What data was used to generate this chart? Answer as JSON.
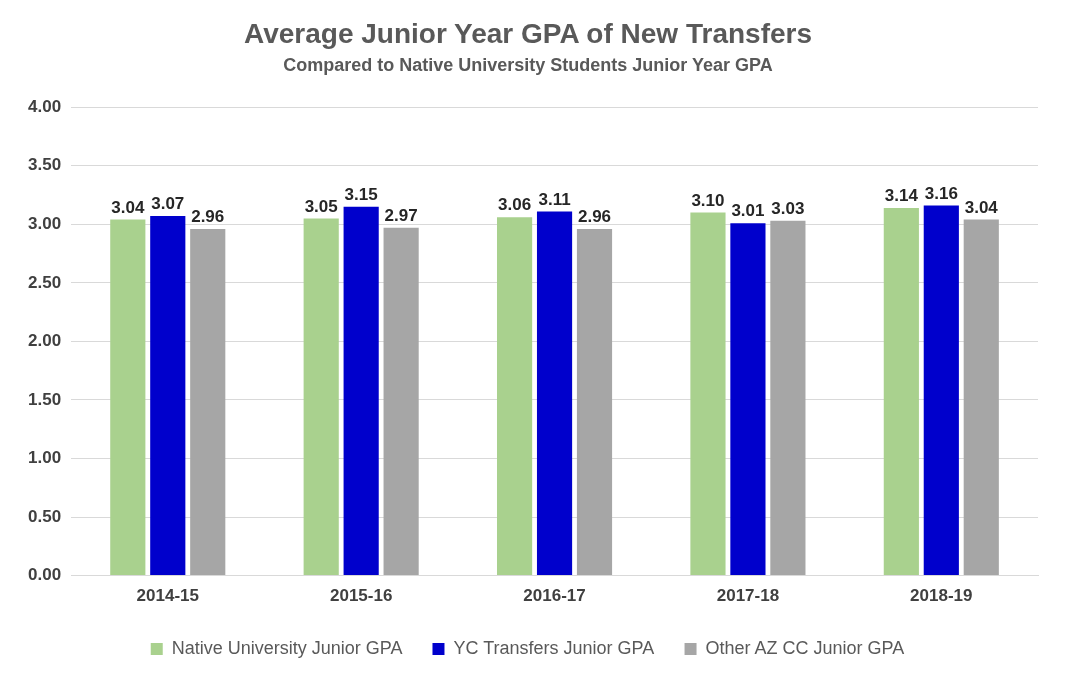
{
  "chart_data": {
    "type": "bar",
    "title": "Average Junior Year GPA of New Transfers",
    "subtitle": "Compared to Native University Students Junior Year GPA",
    "categories": [
      "2014-15",
      "2015-16",
      "2016-17",
      "2017-18",
      "2018-19"
    ],
    "series": [
      {
        "name": "Native University Junior GPA",
        "color": "#a9d18e",
        "values": [
          3.04,
          3.05,
          3.06,
          3.1,
          3.14
        ],
        "value_labels": [
          "3.04",
          "3.05",
          "3.06",
          "3.10",
          "3.14"
        ]
      },
      {
        "name": "YC Transfers Junior GPA",
        "color": "#0000cc",
        "values": [
          3.07,
          3.15,
          3.11,
          3.01,
          3.16
        ],
        "value_labels": [
          "3.07",
          "3.15",
          "3.11",
          "3.01",
          "3.16"
        ]
      },
      {
        "name": "Other AZ CC Junior GPA",
        "color": "#a6a6a6",
        "values": [
          2.96,
          2.97,
          2.96,
          3.03,
          3.04
        ],
        "value_labels": [
          "2.96",
          "2.97",
          "2.96",
          "3.03",
          "3.04"
        ]
      }
    ],
    "ylim": [
      0,
      4
    ],
    "yticks": [
      {
        "value": 0,
        "label": "0.00"
      },
      {
        "value": 0.5,
        "label": "0.50"
      },
      {
        "value": 1,
        "label": "1.00"
      },
      {
        "value": 1.5,
        "label": "1.50"
      },
      {
        "value": 2,
        "label": "2.00"
      },
      {
        "value": 2.5,
        "label": "2.50"
      },
      {
        "value": 3,
        "label": "3.00"
      },
      {
        "value": 3.5,
        "label": "3.50"
      },
      {
        "value": 4,
        "label": "4.00"
      }
    ],
    "grid": "y",
    "legend": "bottom"
  }
}
